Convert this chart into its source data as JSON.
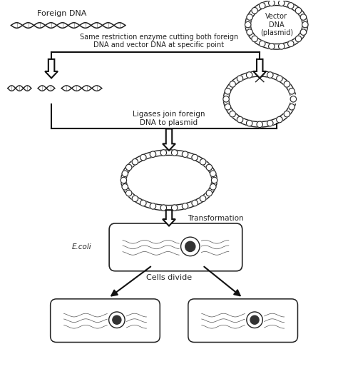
{
  "title": "",
  "bg_color": "#ffffff",
  "text_color": "#000000",
  "labels": {
    "foreign_dna": "Foreign DNA",
    "vector_dna": "Vector\nDNA\n(plasmid)",
    "restriction": "Same restriction enzyme cutting both foreign\nDNA and vector DNA at specific point",
    "ligases": "Ligases join foreign\nDNA to plasmid",
    "transformation": "Transformation",
    "ecoli": "E.coli",
    "cells_divide": "Cells divide"
  },
  "dna_color": "#222222",
  "arrow_color": "#111111"
}
